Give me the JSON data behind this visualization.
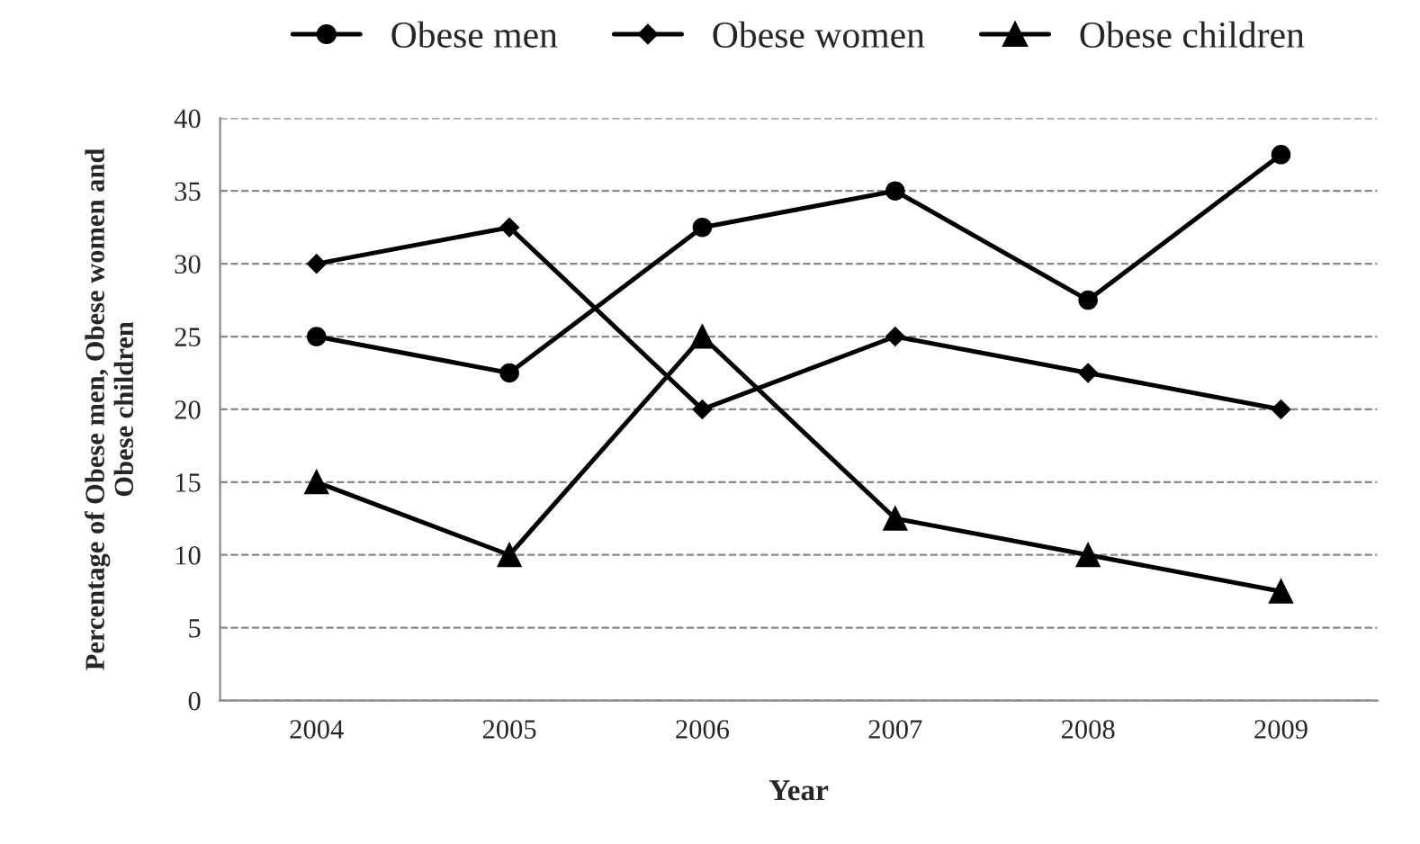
{
  "chart_data": {
    "type": "line",
    "xlabel": "Year",
    "ylabel": "Percentage of Obese men, Obese women and\nObese children",
    "categories": [
      "2004",
      "2005",
      "2006",
      "2007",
      "2008",
      "2009"
    ],
    "series": [
      {
        "name": "Obese men",
        "color": "#000000",
        "marker": "circle",
        "values": [
          25,
          22.5,
          32.5,
          35,
          27.5,
          37.5
        ]
      },
      {
        "name": "Obese women",
        "color": "#000000",
        "marker": "diamond",
        "values": [
          30,
          32.5,
          20,
          25,
          22.5,
          20
        ]
      },
      {
        "name": "Obese children",
        "color": "#000000",
        "marker": "triangle",
        "values": [
          15,
          10,
          25,
          12.5,
          10,
          7.5
        ]
      }
    ],
    "ylim": [
      0,
      40
    ],
    "yticks": [
      0,
      5,
      10,
      15,
      20,
      25,
      30,
      35,
      40
    ],
    "grid": "y",
    "legend": "top",
    "line_style": "solid"
  }
}
